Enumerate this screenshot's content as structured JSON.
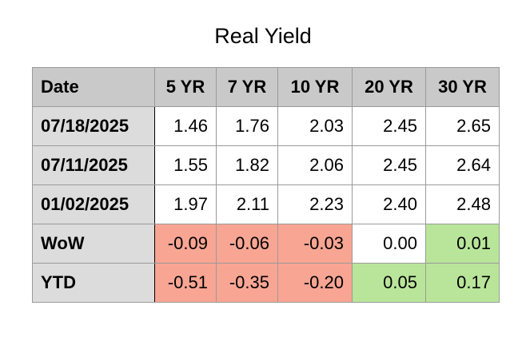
{
  "title": "Real Yield",
  "table": {
    "header": [
      "Date",
      "5 YR",
      "7 YR",
      "10 YR",
      "20 YR",
      "30 YR"
    ],
    "header_fill": "#c9c9c9",
    "label_fill": "#dcdcdc",
    "rows": [
      [
        "07/18/2025",
        "1.46",
        "1.76",
        "2.03",
        "2.45",
        "2.65"
      ],
      [
        "07/11/2025",
        "1.55",
        "1.82",
        "2.06",
        "2.45",
        "2.64"
      ],
      [
        "01/02/2025",
        "1.97",
        "2.11",
        "2.23",
        "2.40",
        "2.48"
      ],
      [
        "WoW",
        "-0.09",
        "-0.06",
        "-0.03",
        "0.00",
        "0.01"
      ],
      [
        "YTD",
        "-0.51",
        "-0.35",
        "-0.20",
        "0.05",
        "0.17"
      ]
    ],
    "cell_fills": [
      [
        "#ffffff",
        "#ffffff",
        "#ffffff",
        "#ffffff",
        "#ffffff"
      ],
      [
        "#ffffff",
        "#ffffff",
        "#ffffff",
        "#ffffff",
        "#ffffff"
      ],
      [
        "#ffffff",
        "#ffffff",
        "#ffffff",
        "#ffffff",
        "#ffffff"
      ],
      [
        "#f9a593",
        "#f9a593",
        "#f9a593",
        "#ffffff",
        "#b9e59a"
      ],
      [
        "#f9a593",
        "#f9a593",
        "#f9a593",
        "#b9e59a",
        "#b9e59a"
      ]
    ]
  }
}
